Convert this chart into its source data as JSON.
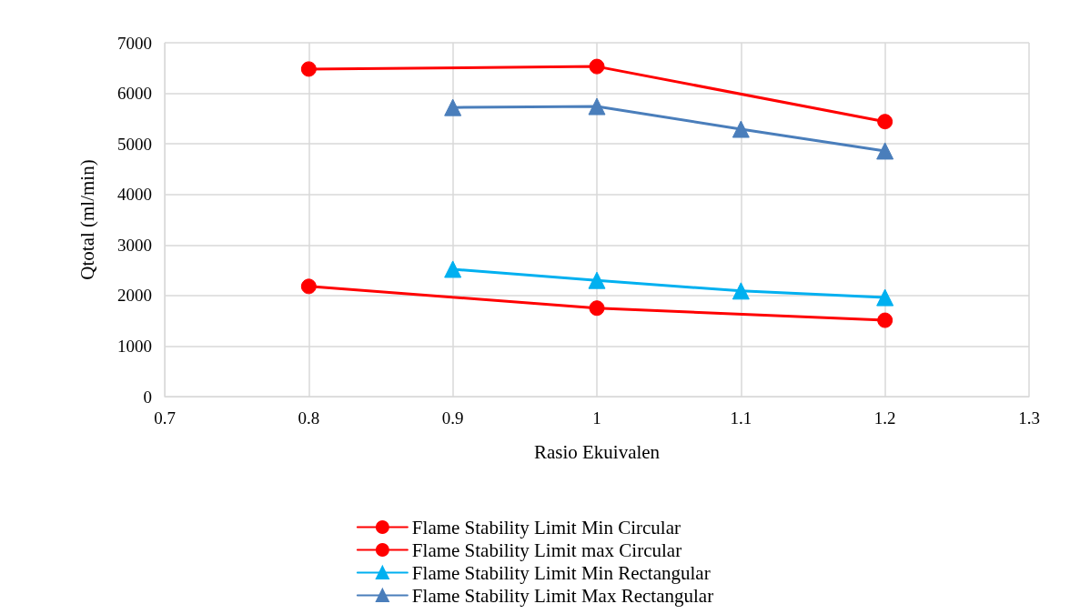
{
  "chart_data": {
    "type": "line",
    "xlabel": "Rasio Ekuivalen",
    "ylabel": "Qtotal (ml/min)",
    "xlim": [
      0.7,
      1.3
    ],
    "xticks": [
      0.7,
      0.8,
      0.9,
      1,
      1.1,
      1.2,
      1.3
    ],
    "ylim": [
      0,
      7000
    ],
    "yticks": [
      0,
      1000,
      2000,
      3000,
      4000,
      5000,
      6000,
      7000
    ],
    "grid": true,
    "legend": "bottom",
    "line_style": "solid",
    "series": [
      {
        "name": "Flame Stability Limit Min Circular",
        "color": "#ff0000",
        "marker": "circle",
        "x": [
          0.8,
          1,
          1.2
        ],
        "values": [
          2180,
          1750,
          1510
        ]
      },
      {
        "name": "Flame Stability Limit max Circular",
        "color": "#ff0000",
        "marker": "circle",
        "x": [
          0.8,
          1,
          1.2
        ],
        "values": [
          6480,
          6530,
          5440
        ]
      },
      {
        "name": "Flame Stability Limit Min Rectangular",
        "color": "#00b0f0",
        "marker": "triangle",
        "x": [
          0.9,
          1,
          1.1,
          1.2
        ],
        "values": [
          2520,
          2300,
          2090,
          1960
        ]
      },
      {
        "name": "Flame Stability Limit Max Rectangular",
        "color": "#4a7ebb",
        "marker": "triangle",
        "x": [
          0.9,
          1,
          1.1,
          1.2
        ],
        "values": [
          5720,
          5740,
          5290,
          4860
        ]
      }
    ]
  }
}
